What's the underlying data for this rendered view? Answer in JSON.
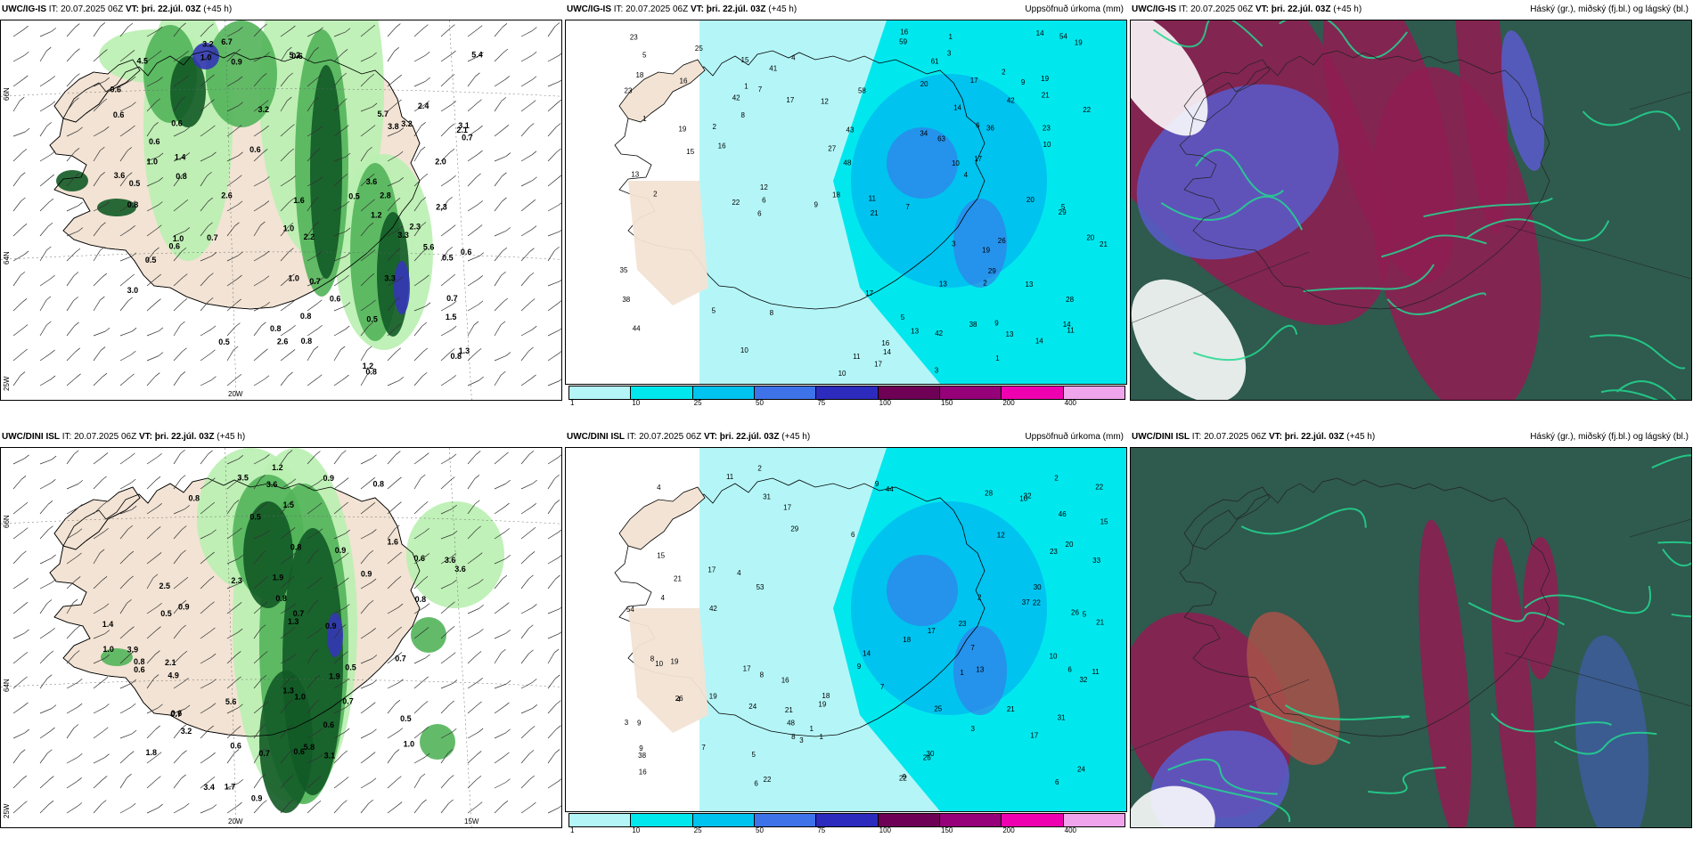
{
  "panels": [
    {
      "id": "top-left",
      "model": "UWC/IG-IS",
      "it": "IT: 20.07.2025 06Z",
      "vt_label": "VT:",
      "vt": "þri. 22.júl. 03Z",
      "lead": "(+45 h)",
      "right_title": "",
      "type": "precip-wind",
      "axis_labels": {
        "lat_top": "66N",
        "lat_mid": "64N",
        "lon_left": "25W",
        "lon_mid": "20W",
        "lon_right": ""
      },
      "values": [
        {
          "v": "0.7"
        },
        {
          "v": "5.6"
        },
        {
          "v": "2.4"
        },
        {
          "v": "2.0"
        },
        {
          "v": "3.2"
        },
        {
          "v": "1.2"
        },
        {
          "v": "0.7"
        },
        {
          "v": "1.0"
        },
        {
          "v": "2.2"
        },
        {
          "v": "2.6"
        },
        {
          "v": "0.6"
        },
        {
          "v": "3.6"
        },
        {
          "v": "2.8"
        },
        {
          "v": "0.8"
        },
        {
          "v": "0.8"
        },
        {
          "v": "1.0"
        },
        {
          "v": "0.5"
        },
        {
          "v": "0.9"
        },
        {
          "v": "0.8"
        },
        {
          "v": "0.5"
        },
        {
          "v": "1.0"
        },
        {
          "v": "1.6"
        },
        {
          "v": "0.5"
        },
        {
          "v": "0.7"
        },
        {
          "v": "1.4"
        },
        {
          "v": "0.6"
        },
        {
          "v": "0.8"
        },
        {
          "v": "0.5"
        },
        {
          "v": "0.7"
        },
        {
          "v": "0.6"
        },
        {
          "v": "0.8"
        },
        {
          "v": "0.6"
        },
        {
          "v": "2.1"
        },
        {
          "v": "0.6"
        },
        {
          "v": "1.2"
        },
        {
          "v": "0.5"
        },
        {
          "v": "0.6"
        },
        {
          "v": "1.3"
        },
        {
          "v": "3.3"
        },
        {
          "v": "3.2"
        },
        {
          "v": "3.0"
        },
        {
          "v": "0.8"
        },
        {
          "v": "4.5"
        },
        {
          "v": "0.6"
        },
        {
          "v": "1.0"
        },
        {
          "v": "2.3"
        },
        {
          "v": "3.2"
        },
        {
          "v": "2.6"
        },
        {
          "v": "6.7"
        },
        {
          "v": "0.6"
        },
        {
          "v": "3.6"
        },
        {
          "v": "1.5"
        },
        {
          "v": "5.4"
        },
        {
          "v": "5.7"
        },
        {
          "v": "3.1"
        },
        {
          "v": "5.2"
        },
        {
          "v": "3.8"
        },
        {
          "v": "3.3"
        },
        {
          "v": "2.3"
        },
        {
          "v": "0.8"
        },
        {
          "v": "0.5"
        },
        {
          "v": "1.0"
        },
        {
          "v": "0.6"
        }
      ]
    },
    {
      "id": "top-middle",
      "model": "UWC/IG-IS",
      "it": "IT: 20.07.2025 06Z",
      "vt_label": "VT:",
      "vt": "þri. 22.júl. 03Z",
      "lead": "(+45 h)",
      "right_title": "Uppsöfnuð úrkoma (mm)",
      "type": "accum-precip",
      "values": [
        {
          "v": "1"
        },
        {
          "v": "8"
        },
        {
          "v": "10"
        },
        {
          "v": "11"
        },
        {
          "v": "9"
        },
        {
          "v": "10"
        },
        {
          "v": "3"
        },
        {
          "v": "6"
        },
        {
          "v": "19"
        },
        {
          "v": "21"
        },
        {
          "v": "20"
        },
        {
          "v": "7"
        },
        {
          "v": "6"
        },
        {
          "v": "5"
        },
        {
          "v": "13"
        },
        {
          "v": "10"
        },
        {
          "v": "12"
        },
        {
          "v": "12"
        },
        {
          "v": "14"
        },
        {
          "v": "13"
        },
        {
          "v": "13"
        },
        {
          "v": "29"
        },
        {
          "v": "48"
        },
        {
          "v": "17"
        },
        {
          "v": "17"
        },
        {
          "v": "16"
        },
        {
          "v": "21"
        },
        {
          "v": "61"
        },
        {
          "v": "25"
        },
        {
          "v": "22"
        },
        {
          "v": "35"
        },
        {
          "v": "42"
        },
        {
          "v": "54"
        },
        {
          "v": "19"
        },
        {
          "v": "18"
        },
        {
          "v": "15"
        },
        {
          "v": "17"
        },
        {
          "v": "20"
        },
        {
          "v": "59"
        },
        {
          "v": "38"
        },
        {
          "v": "36"
        },
        {
          "v": "42"
        },
        {
          "v": "27"
        },
        {
          "v": "9"
        },
        {
          "v": "16"
        },
        {
          "v": "22"
        },
        {
          "v": "23"
        },
        {
          "v": "20"
        },
        {
          "v": "28"
        },
        {
          "v": "26"
        },
        {
          "v": "43"
        },
        {
          "v": "63"
        },
        {
          "v": "18"
        },
        {
          "v": "19"
        },
        {
          "v": "58"
        },
        {
          "v": "41"
        },
        {
          "v": "44"
        },
        {
          "v": "29"
        },
        {
          "v": "38"
        },
        {
          "v": "34"
        },
        {
          "v": "42"
        },
        {
          "v": "23"
        },
        {
          "v": "23"
        },
        {
          "v": "19"
        },
        {
          "v": "17"
        },
        {
          "v": "16"
        },
        {
          "v": "21"
        },
        {
          "v": "16"
        },
        {
          "v": "14"
        },
        {
          "v": "14"
        },
        {
          "v": "11"
        },
        {
          "v": "14"
        },
        {
          "v": "8"
        },
        {
          "v": "13"
        },
        {
          "v": "15"
        },
        {
          "v": "2"
        },
        {
          "v": "4"
        },
        {
          "v": "3"
        },
        {
          "v": "13"
        },
        {
          "v": "11"
        },
        {
          "v": "10"
        },
        {
          "v": "7"
        },
        {
          "v": "4"
        },
        {
          "v": "2"
        },
        {
          "v": "1"
        },
        {
          "v": "5"
        },
        {
          "v": "5"
        },
        {
          "v": "17"
        },
        {
          "v": "1"
        },
        {
          "v": "2"
        },
        {
          "v": "2"
        },
        {
          "v": "1"
        },
        {
          "v": "5"
        },
        {
          "v": "6"
        },
        {
          "v": "3"
        },
        {
          "v": "9"
        },
        {
          "v": "14"
        }
      ]
    },
    {
      "id": "top-right",
      "model": "UWC/IG-IS",
      "it": "IT: 20.07.2025 06Z",
      "vt_label": "VT:",
      "vt": "þri. 22.júl. 03Z",
      "lead": "(+45 h)",
      "right_title": "Háský (gr.), miðský (fj.bl.) og lágský (bl.)",
      "type": "clouds"
    },
    {
      "id": "bottom-left",
      "model": "UWC/DINI ISL",
      "it": "IT: 20.07.2025 06Z",
      "vt_label": "VT:",
      "vt": "þri. 22.júl. 03Z",
      "lead": "(+45 h)",
      "right_title": "",
      "type": "precip-wind",
      "axis_labels": {
        "lat_top": "66N",
        "lat_mid": "64N",
        "lon_left": "25W",
        "lon_mid": "20W",
        "lon_right": "15W"
      },
      "values": [
        {
          "v": "1.8"
        },
        {
          "v": "0.8"
        },
        {
          "v": "0.8"
        },
        {
          "v": "1.6"
        },
        {
          "v": "1.0"
        },
        {
          "v": "0.9"
        },
        {
          "v": "4.9"
        },
        {
          "v": "0.6"
        },
        {
          "v": "0.6"
        },
        {
          "v": "0.9"
        },
        {
          "v": "3.9"
        },
        {
          "v": "1.2"
        },
        {
          "v": "0.7"
        },
        {
          "v": "1.3"
        },
        {
          "v": "0.9"
        },
        {
          "v": "3.5"
        },
        {
          "v": "1.0"
        },
        {
          "v": "1.4"
        },
        {
          "v": "0.7"
        },
        {
          "v": "1.7"
        },
        {
          "v": "3.1"
        },
        {
          "v": "3.6"
        },
        {
          "v": "0.5"
        },
        {
          "v": "0.7"
        },
        {
          "v": "0.8"
        },
        {
          "v": "0.6"
        },
        {
          "v": "0.8"
        },
        {
          "v": "0.9"
        },
        {
          "v": "0.8"
        },
        {
          "v": "0.5"
        },
        {
          "v": "2.5"
        },
        {
          "v": "3.2"
        },
        {
          "v": "5.8"
        },
        {
          "v": "1.3"
        },
        {
          "v": "0.5"
        },
        {
          "v": "0.6"
        },
        {
          "v": "3.6"
        },
        {
          "v": "0.9"
        },
        {
          "v": "0.9"
        },
        {
          "v": "0.7"
        },
        {
          "v": "3.6"
        },
        {
          "v": "1.5"
        },
        {
          "v": "0.7"
        },
        {
          "v": "2.1"
        },
        {
          "v": "1.0"
        },
        {
          "v": "0.5"
        },
        {
          "v": "1.9"
        },
        {
          "v": "0.6"
        },
        {
          "v": "5.6"
        },
        {
          "v": "0.6"
        },
        {
          "v": "2.3"
        },
        {
          "v": "3.4"
        },
        {
          "v": "1.9"
        },
        {
          "v": "0.8"
        }
      ]
    },
    {
      "id": "bottom-middle",
      "model": "UWC/DINI ISL",
      "it": "IT: 20.07.2025 06Z",
      "vt_label": "VT:",
      "vt": "þri. 22.júl. 03Z",
      "lead": "(+45 h)",
      "right_title": "Uppsöfnuð úrkoma (mm)",
      "type": "accum-precip",
      "values": [
        {
          "v": "4"
        },
        {
          "v": "4"
        },
        {
          "v": "15"
        },
        {
          "v": "8"
        },
        {
          "v": "6"
        },
        {
          "v": "5"
        },
        {
          "v": "6"
        },
        {
          "v": "8"
        },
        {
          "v": "7"
        },
        {
          "v": "11"
        },
        {
          "v": "9"
        },
        {
          "v": "9"
        },
        {
          "v": "17"
        },
        {
          "v": "33"
        },
        {
          "v": "10"
        },
        {
          "v": "9"
        },
        {
          "v": "11"
        },
        {
          "v": "10"
        },
        {
          "v": "26"
        },
        {
          "v": "30"
        },
        {
          "v": "46"
        },
        {
          "v": "32"
        },
        {
          "v": "24"
        },
        {
          "v": "13"
        },
        {
          "v": "15"
        },
        {
          "v": "18"
        },
        {
          "v": "23"
        },
        {
          "v": "20"
        },
        {
          "v": "19"
        },
        {
          "v": "23"
        },
        {
          "v": "32"
        },
        {
          "v": "37"
        },
        {
          "v": "14"
        },
        {
          "v": "18"
        },
        {
          "v": "21"
        },
        {
          "v": "26"
        },
        {
          "v": "25"
        },
        {
          "v": "24"
        },
        {
          "v": "19"
        },
        {
          "v": "22"
        },
        {
          "v": "30"
        },
        {
          "v": "42"
        },
        {
          "v": "28"
        },
        {
          "v": "44"
        },
        {
          "v": "53"
        },
        {
          "v": "31"
        },
        {
          "v": "48"
        },
        {
          "v": "38"
        },
        {
          "v": "26"
        },
        {
          "v": "29"
        },
        {
          "v": "12"
        },
        {
          "v": "54"
        },
        {
          "v": "31"
        },
        {
          "v": "17"
        },
        {
          "v": "22"
        },
        {
          "v": "21"
        },
        {
          "v": "22"
        },
        {
          "v": "21"
        },
        {
          "v": "21"
        },
        {
          "v": "22"
        },
        {
          "v": "19"
        },
        {
          "v": "17"
        },
        {
          "v": "17"
        },
        {
          "v": "16"
        },
        {
          "v": "17"
        },
        {
          "v": "16"
        },
        {
          "v": "9"
        },
        {
          "v": "7"
        },
        {
          "v": "7"
        },
        {
          "v": "5"
        },
        {
          "v": "3"
        },
        {
          "v": "2"
        },
        {
          "v": "3"
        },
        {
          "v": "4"
        },
        {
          "v": "1"
        },
        {
          "v": "2"
        },
        {
          "v": "3"
        },
        {
          "v": "4"
        },
        {
          "v": "6"
        },
        {
          "v": "6"
        },
        {
          "v": "8"
        },
        {
          "v": "9"
        },
        {
          "v": "10"
        },
        {
          "v": "1"
        },
        {
          "v": "2"
        },
        {
          "v": "1"
        }
      ]
    },
    {
      "id": "bottom-right",
      "model": "UWC/DINI ISL",
      "it": "IT: 20.07.2025 06Z",
      "vt_label": "VT:",
      "vt": "þri. 22.júl. 03Z",
      "lead": "(+45 h)",
      "right_title": "Háský (gr.), miðský (fj.bl.) og lágský (bl.)",
      "type": "clouds"
    }
  ],
  "precip_legend": {
    "ticks": [
      "1",
      "10",
      "25",
      "50",
      "75",
      "100",
      "150",
      "200",
      "400"
    ],
    "colors": [
      "#b4f6f8",
      "#00e8ee",
      "#00c3ef",
      "#3e72e8",
      "#2c2bbd",
      "#6e0055",
      "#960078",
      "#ee00b0",
      "#f0a4ec"
    ]
  },
  "map_colors": {
    "land": "#f2e3d4",
    "sea": "#ffffff",
    "precip_light": "#b9f0b0",
    "precip_mid": "#52b45a",
    "precip_dark": "#125a26",
    "precip_blue": "#3436b6",
    "cloud_high": "#2f5a4e",
    "cloud_mid": "#8e1e52",
    "cloud_low": "#5a5ac8",
    "cloud_edge": "#22d890"
  }
}
